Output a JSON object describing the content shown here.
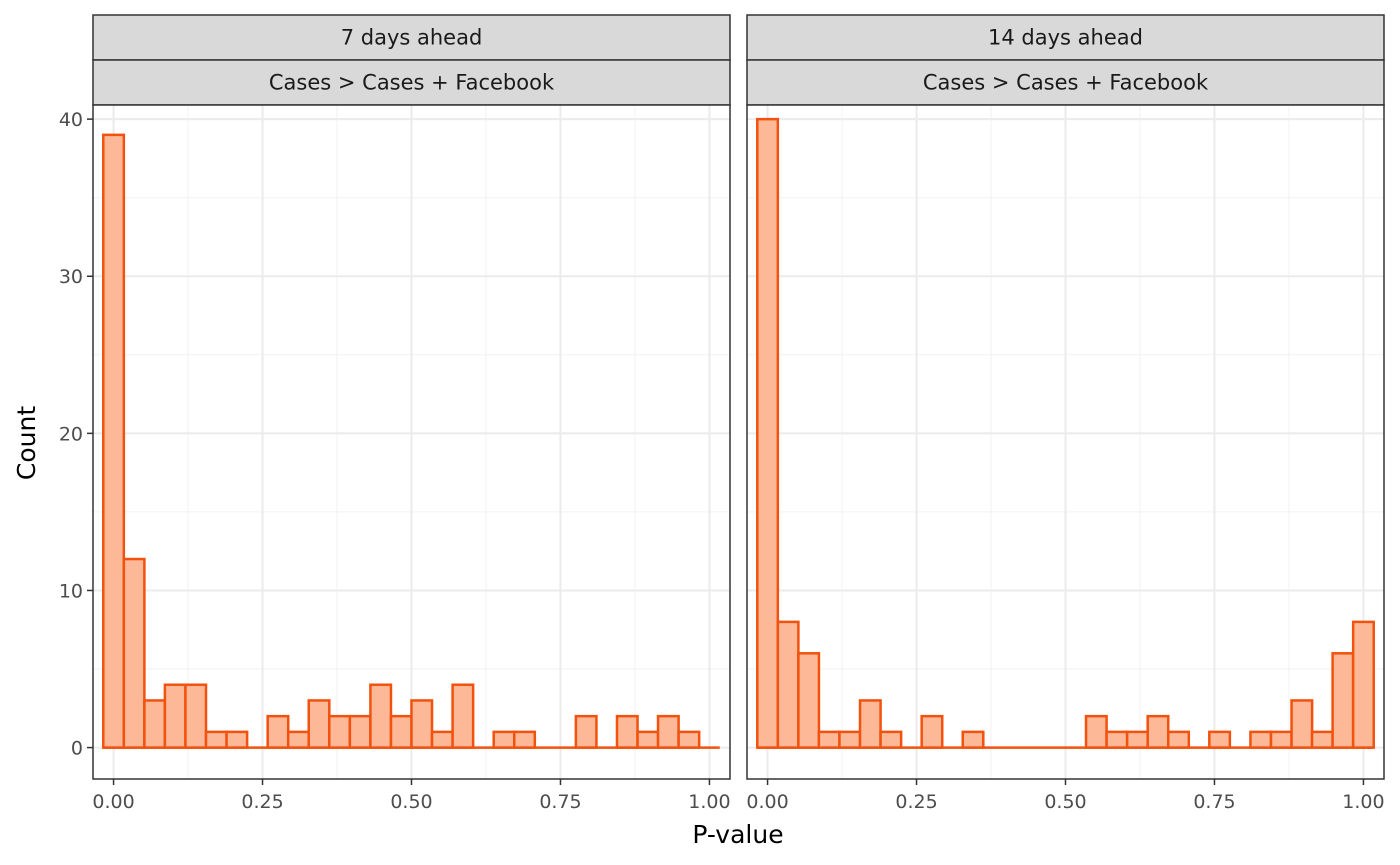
{
  "chart_data": {
    "type": "bar",
    "xlabel": "P-value",
    "ylabel": "Count",
    "x_ticks": [
      0,
      0.25,
      0.5,
      0.75,
      1.0
    ],
    "x_tick_labels": [
      "0.00",
      "0.25",
      "0.50",
      "0.75",
      "1.00"
    ],
    "y_ticks": [
      0,
      10,
      20,
      30,
      40
    ],
    "y_tick_labels": [
      "0",
      "10",
      "20",
      "30",
      "40"
    ],
    "xlim": [
      -0.0345,
      1.0345
    ],
    "ylim": [
      -2,
      40.9
    ],
    "bin_width": 0.0345,
    "bin_centers": [
      0.0,
      0.0345,
      0.069,
      0.1034,
      0.1379,
      0.1724,
      0.2069,
      0.2414,
      0.2759,
      0.3103,
      0.3448,
      0.3793,
      0.4138,
      0.4483,
      0.4828,
      0.5172,
      0.5517,
      0.5862,
      0.6207,
      0.6552,
      0.6897,
      0.7241,
      0.7586,
      0.7931,
      0.8276,
      0.8621,
      0.8966,
      0.931,
      0.9655,
      1.0
    ],
    "grid": true,
    "colors": {
      "fill": "#fdb897",
      "stroke": "#f2520d",
      "strip": "#d9d9d9"
    },
    "panels": [
      {
        "strip_top": "7 days ahead",
        "strip_bottom": "Cases > Cases + Facebook",
        "counts": [
          39,
          12,
          3,
          4,
          4,
          1,
          1,
          0,
          2,
          1,
          3,
          2,
          2,
          4,
          2,
          3,
          1,
          4,
          0,
          1,
          1,
          0,
          0,
          2,
          0,
          2,
          1,
          2,
          1,
          0
        ]
      },
      {
        "strip_top": "14 days ahead",
        "strip_bottom": "Cases > Cases + Facebook",
        "counts": [
          40,
          8,
          6,
          1,
          1,
          3,
          1,
          0,
          2,
          0,
          1,
          0,
          0,
          0,
          0,
          0,
          2,
          1,
          1,
          2,
          1,
          0,
          1,
          0,
          1,
          1,
          3,
          1,
          6,
          8
        ]
      }
    ]
  }
}
